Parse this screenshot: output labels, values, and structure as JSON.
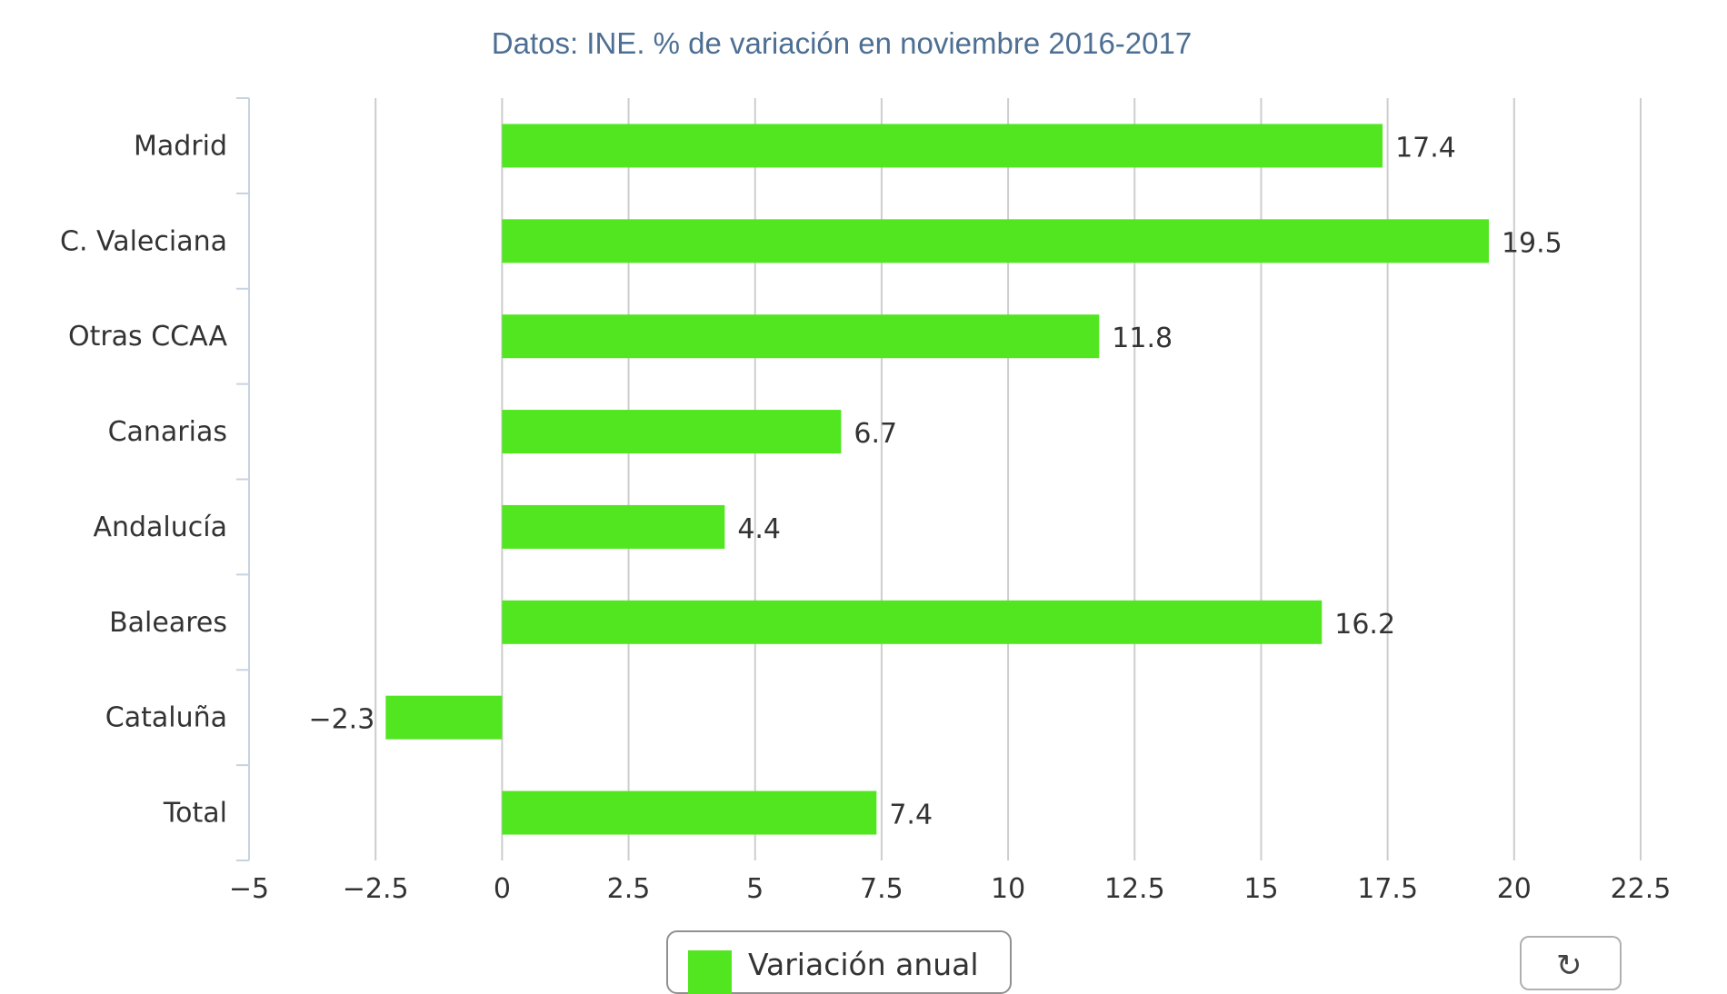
{
  "title": "",
  "subtitle": "Datos: INE. % de variación en noviembre 2016-2017",
  "colors": {
    "bar": "#52e620",
    "grid": "#cdcdcd",
    "axis": "#c8d2e0",
    "text": "#333333",
    "subtitle": "#4d6f93"
  },
  "legend": {
    "label": "Variación anual"
  },
  "reset_button": {
    "icon": "refresh-icon"
  },
  "chart_data": {
    "type": "bar",
    "orientation": "horizontal",
    "categories": [
      "Madrid",
      "C. Valeciana",
      "Otras CCAA",
      "Canarias",
      "Andalucía",
      "Baleares",
      "Cataluña",
      "Total"
    ],
    "series": [
      {
        "name": "Variación anual",
        "values": [
          17.4,
          19.5,
          11.8,
          6.7,
          4.4,
          16.2,
          -2.3,
          7.4
        ]
      }
    ],
    "xlim": [
      -5,
      22.5
    ],
    "ticks": [
      -5,
      -2.5,
      0,
      2.5,
      5,
      7.5,
      10,
      12.5,
      15,
      17.5,
      20,
      22.5
    ],
    "tick_labels": [
      "−5",
      "−2.5",
      "0",
      "2.5",
      "5",
      "7.5",
      "10",
      "12.5",
      "15",
      "17.5",
      "20",
      "22.5"
    ],
    "value_labels": [
      "17.4",
      "19.5",
      "11.8",
      "6.7",
      "4.4",
      "16.2",
      "−2.3",
      "7.4"
    ],
    "grid": true,
    "legend_position": "bottom-center"
  }
}
